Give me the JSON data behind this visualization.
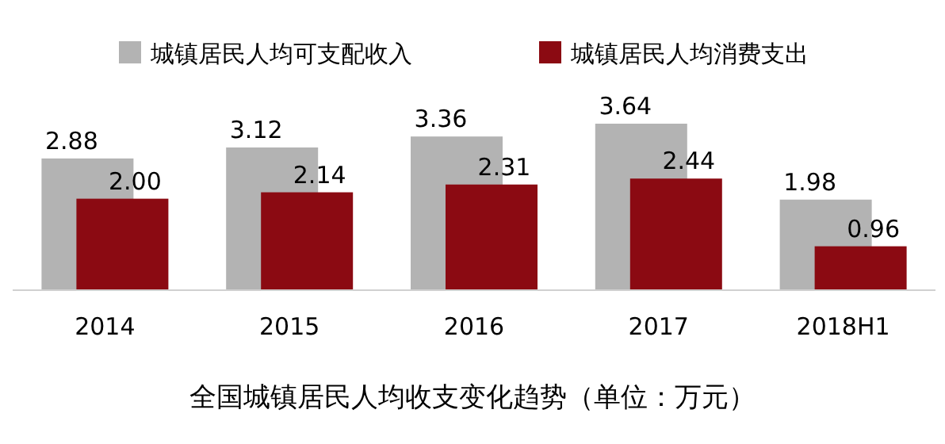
{
  "chart_data": {
    "type": "bar",
    "title": "全国城镇居民人均收支变化趋势（单位：万元）",
    "categories": [
      "2014",
      "2015",
      "2016",
      "2017",
      "2018H1"
    ],
    "series": [
      {
        "name": "城镇居民人均可支配收入",
        "color": "#b3b3b3",
        "values": [
          2.88,
          3.12,
          3.36,
          3.64,
          1.98
        ],
        "value_labels": [
          "2.88",
          "3.12",
          "3.36",
          "3.64",
          "1.98"
        ]
      },
      {
        "name": "城镇居民人均消费支出",
        "color": "#8b0a12",
        "values": [
          2.0,
          2.14,
          2.31,
          2.44,
          0.96
        ],
        "value_labels": [
          "2.00",
          "2.14",
          "2.31",
          "2.44",
          "0.96"
        ]
      }
    ],
    "legend": "top"
  }
}
